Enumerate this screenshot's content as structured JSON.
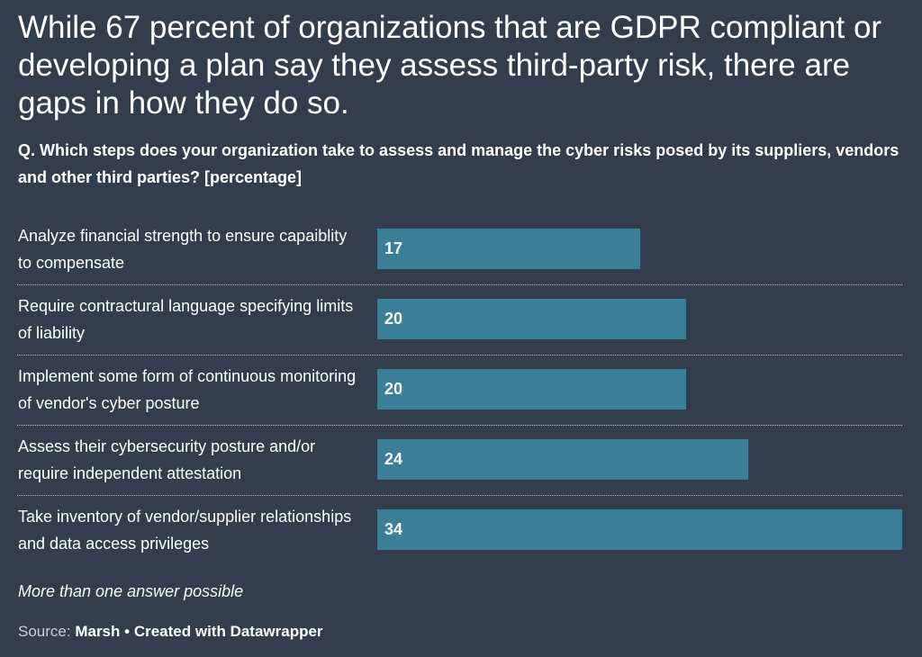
{
  "title": "While 67 percent of organizations that are GDPR compliant or developing a plan say they assess third-party risk, there are gaps in how they do so.",
  "subtitle": "Q. Which steps does your organization take to assess and manage the cyber risks posed by its suppliers, vendors and other third parties? [percentage]",
  "note": "More than one answer possible",
  "footer": {
    "source_prefix": "Source:",
    "source_name": "Marsh",
    "separator": "•",
    "credit": "Created with Datawrapper"
  },
  "colors": {
    "background": "#323e4d",
    "bar": "#3b7f96",
    "text": "#ffffff"
  },
  "chart_data": {
    "type": "bar",
    "orientation": "horizontal",
    "title": "While 67 percent of organizations that are GDPR compliant or developing a plan say they assess third-party risk, there are gaps in how they do so.",
    "categories": [
      "Analyze financial strength to ensure capaiblity to compensate",
      "Require contractural language specifying limits of liability",
      "Implement some form of continuous monitoring of vendor's cyber posture",
      "Assess their cybersecurity posture and/or require independent attestation",
      "Take inventory of vendor/supplier relationships and data access privileges"
    ],
    "values": [
      17,
      20,
      20,
      24,
      34
    ],
    "xlim": [
      0,
      34
    ],
    "grid": false,
    "legend": "none",
    "data_labels": "inside-left"
  }
}
